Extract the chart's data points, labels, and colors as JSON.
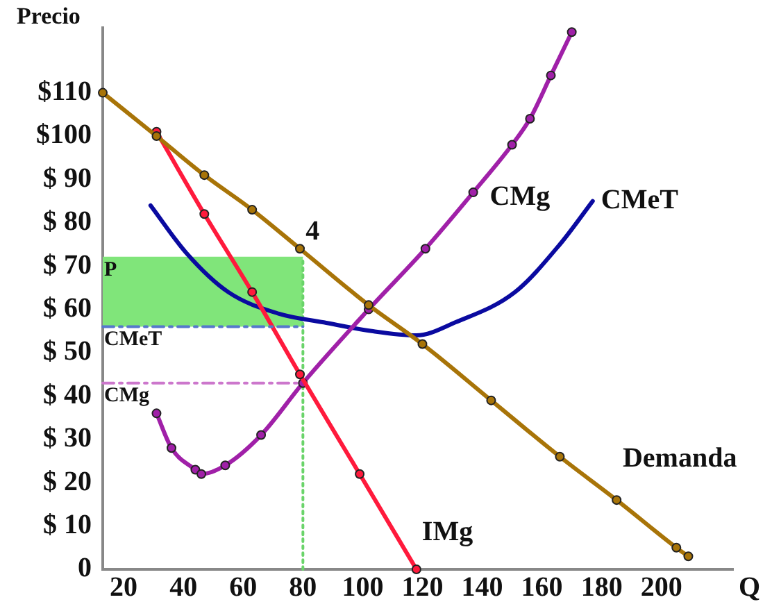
{
  "chart_data": {
    "type": "line",
    "xlabel": "Q",
    "ylabel": "Precio",
    "xlim": [
      13,
      224
    ],
    "xticks": [
      20,
      40,
      60,
      80,
      100,
      120,
      140,
      160,
      180,
      200
    ],
    "ylim": [
      0,
      125
    ],
    "yticks": [
      {
        "value": 0,
        "label": "0"
      },
      {
        "value": 10,
        "label": "$ 10"
      },
      {
        "value": 20,
        "label": "$ 20"
      },
      {
        "value": 30,
        "label": "$ 30"
      },
      {
        "value": 40,
        "label": "$ 40"
      },
      {
        "value": 50,
        "label": "$ 50"
      },
      {
        "value": 60,
        "label": "$ 60"
      },
      {
        "value": 70,
        "label": "$ 70"
      },
      {
        "value": 80,
        "label": "$ 80"
      },
      {
        "value": 90,
        "label": "$ 90"
      },
      {
        "value": 100,
        "label": "$100"
      },
      {
        "value": 110,
        "label": "$110"
      }
    ],
    "grid": false,
    "legend": false,
    "marker": "circle",
    "line_style": "solid",
    "series": [
      {
        "type": "area",
        "color": "#80e57a",
        "x": [
          13,
          80
        ],
        "values": [
          72,
          72
        ],
        "marker": "none"
      },
      {
        "color": "#5577cc",
        "marker": "none",
        "line_style": "dashed",
        "x": [
          13,
          80
        ],
        "values": [
          56,
          56
        ]
      },
      {
        "name": "Demanda",
        "color": "#a87408",
        "x": [
          13,
          31,
          47,
          63,
          79,
          102,
          120,
          143,
          166,
          185,
          205,
          209
        ],
        "values": [
          110,
          100,
          91,
          83,
          74,
          61,
          52,
          39,
          26,
          16,
          5,
          3
        ]
      },
      {
        "name": "IMg",
        "color": "#ff1a3c",
        "x": [
          31,
          47,
          63,
          79,
          99,
          118
        ],
        "values": [
          101,
          82,
          64,
          45,
          22,
          0
        ]
      },
      {
        "name": "CMg",
        "color": "#a020a8",
        "x": [
          31,
          36,
          44,
          46,
          54,
          66,
          80,
          102,
          121,
          137,
          150,
          156,
          163,
          170
        ],
        "values": [
          36,
          28,
          23,
          22,
          24,
          31,
          43,
          60,
          74,
          87,
          98,
          104,
          114,
          124
        ]
      },
      {
        "name": "CMeT",
        "color": "#0a0aa0",
        "marker": "none",
        "x": [
          29,
          41,
          55,
          72,
          87,
          103,
          118,
          131,
          151,
          166,
          177
        ],
        "values": [
          84,
          73,
          64,
          59,
          57,
          55,
          54,
          57,
          64,
          75,
          85
        ]
      },
      {
        "color": "#6ad46a",
        "marker": "none",
        "line_style": "dotted",
        "x": [
          80,
          80
        ],
        "values": [
          0,
          72
        ]
      },
      {
        "color": "#cc77cc",
        "marker": "none",
        "line_style": "dashed",
        "x": [
          13,
          78
        ],
        "values": [
          43,
          43
        ]
      }
    ],
    "annotations": [
      {
        "text": "P",
        "y": 72
      },
      {
        "text": "CMeT",
        "y": 56
      },
      {
        "text": "CMg",
        "y": 43
      },
      {
        "text": "4",
        "x": 80,
        "y": 74
      }
    ]
  }
}
